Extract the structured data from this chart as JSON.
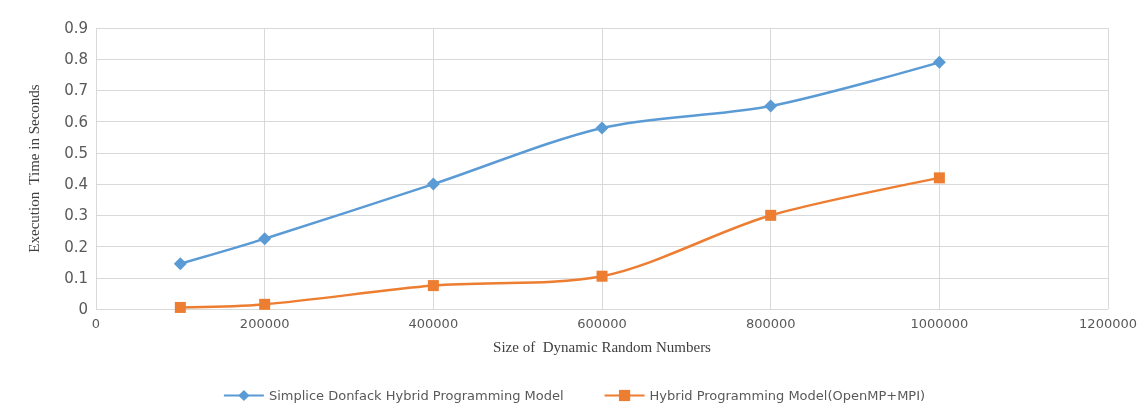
{
  "chart_data": {
    "type": "line",
    "xlabel": "Size of  Dynamic Random Numbers",
    "ylabel": "Execution  Time in Seconds",
    "x": [
      100000,
      200000,
      400000,
      600000,
      800000,
      1000000
    ],
    "series": [
      {
        "name": "Simplice Donfack Hybrid Programming Model",
        "color": "#5b9bd5",
        "marker": "diamond",
        "values": [
          0.145,
          0.225,
          0.4,
          0.58,
          0.65,
          0.79
        ]
      },
      {
        "name": "Hybrid Programming Model(OpenMP+MPI)",
        "color": "#ed7d31",
        "marker": "square",
        "values": [
          0.005,
          0.015,
          0.075,
          0.105,
          0.3,
          0.42
        ]
      }
    ],
    "xlim": [
      0,
      1200000
    ],
    "xticks": [
      0,
      200000,
      400000,
      600000,
      800000,
      1000000,
      1200000
    ],
    "ylim": [
      0,
      0.9
    ],
    "yticks": [
      0,
      0.1,
      0.2,
      0.3,
      0.4,
      0.5,
      0.6,
      0.7,
      0.8,
      0.9
    ],
    "grid": true,
    "legend": "bottom"
  }
}
